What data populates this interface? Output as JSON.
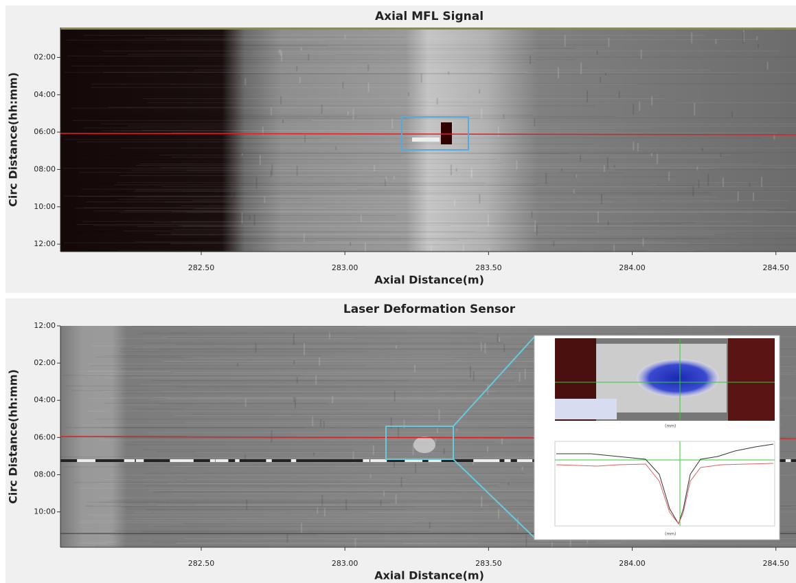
{
  "chart_data": [
    {
      "type": "image",
      "title": "Axial MFL Signal",
      "x_label": "Axial Distance(m)",
      "y_label": "Circ Distance(hh:mm)",
      "xlim": [
        282.01,
        284.57
      ],
      "xticks": [
        {
          "value": 282.5,
          "label": "282.50"
        },
        {
          "value": 283,
          "label": "283.00"
        },
        {
          "value": 283.5,
          "label": "283.50"
        },
        {
          "value": 284,
          "label": "284.00"
        },
        {
          "value": 284.5,
          "label": "284.50"
        }
      ],
      "ylim": [
        0.4,
        12.4
      ],
      "y_inverted": true,
      "yticks": [
        {
          "value": 2,
          "label": "02:00"
        },
        {
          "value": 4,
          "label": "04:00"
        },
        {
          "value": 6,
          "label": "06:00"
        },
        {
          "value": 8,
          "label": "08:00"
        },
        {
          "value": 10,
          "label": "10:00"
        },
        {
          "value": 12,
          "label": "12:00"
        }
      ]
    },
    {
      "type": "image",
      "title": "Laser Deformation Sensor",
      "x_label": "Axial Distance(m)",
      "y_label": "Circ Distance(hh:mm)",
      "xlim": [
        282.01,
        284.57
      ],
      "xticks": [
        {
          "value": 282.5,
          "label": "282.50"
        },
        {
          "value": 283,
          "label": "283.00"
        },
        {
          "value": 283.5,
          "label": "283.50"
        },
        {
          "value": 284,
          "label": "284.00"
        },
        {
          "value": 284.5,
          "label": "284.50"
        }
      ],
      "ylim": [
        0,
        11.9
      ],
      "y_inverted": true,
      "yticks": [
        {
          "value": 0,
          "label": "12:00"
        },
        {
          "value": 2,
          "label": "02:00"
        },
        {
          "value": 4,
          "label": "04:00"
        },
        {
          "value": 6,
          "label": "06:00"
        },
        {
          "value": 8,
          "label": "08:00"
        },
        {
          "value": 10,
          "label": "10:00"
        }
      ],
      "inset_x_labels": [
        "(mm)",
        "(mm)"
      ]
    }
  ]
}
